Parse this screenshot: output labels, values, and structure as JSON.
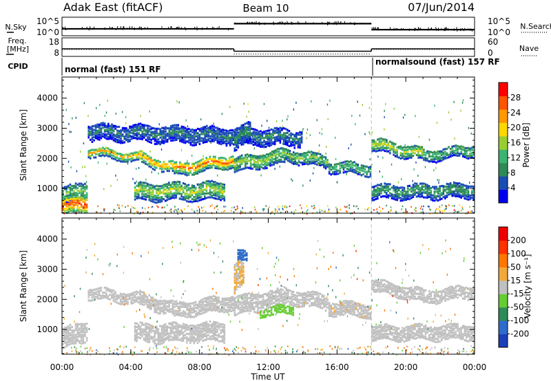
{
  "header": {
    "left_title": "Adak East (fitACF)",
    "center_title": "Beam 10",
    "right_title": "07/Jun/2014"
  },
  "chart_data": [
    {
      "type": "line",
      "panel": "noise",
      "left_label": "N.Sky",
      "left_ticks": [
        "10^5",
        "10^0"
      ],
      "right_label": "N.Search",
      "right_ticks": [
        "10^5",
        "10^0"
      ],
      "series": [
        {
          "name": "N.Sky",
          "style": "solid",
          "segments": [
            {
              "x": [
                0,
                10
              ],
              "y": [
                0.35,
                0.35
              ]
            },
            {
              "x": [
                10,
                18
              ],
              "y": [
                0.68,
                0.68
              ]
            },
            {
              "x": [
                18,
                24
              ],
              "y": [
                0.3,
                0.3
              ]
            }
          ]
        }
      ]
    },
    {
      "type": "line",
      "panel": "frequency",
      "left_label": "Freq.",
      "left_unit": "[MHz]",
      "left_ticks": [
        18,
        8
      ],
      "right_label": "Nave",
      "right_ticks": [
        60,
        0
      ],
      "series": [
        {
          "name": "Freq",
          "style": "solid",
          "segments": [
            {
              "x": [
                0,
                10
              ],
              "y": [
                12,
                12
              ]
            },
            {
              "x": [
                10,
                18
              ],
              "y": [
                10.6,
                10.6
              ]
            },
            {
              "x": [
                18,
                24
              ],
              "y": [
                12,
                12
              ]
            }
          ]
        },
        {
          "name": "Nave",
          "style": "dotted",
          "segments": [
            {
              "x": [
                0,
                10
              ],
              "y": [
                22,
                22
              ]
            },
            {
              "x": [
                10,
                18
              ],
              "y": [
                6,
                6
              ]
            },
            {
              "x": [
                18,
                24
              ],
              "y": [
                22,
                22
              ]
            }
          ]
        }
      ]
    },
    {
      "type": "table",
      "panel": "cpid",
      "label": "CPID",
      "entries": [
        {
          "start": 0,
          "end": 18,
          "text": "normal (fast) 151 RF"
        },
        {
          "start": 18,
          "end": 24,
          "text": "normalsound (fast) 157 RF"
        }
      ]
    },
    {
      "type": "heatmap",
      "panel": "power",
      "ylabel": "Slant Range [km]",
      "ylim": [
        180,
        4700
      ],
      "yticks": [
        1000,
        2000,
        3000,
        4000
      ],
      "xlim": [
        0,
        24
      ],
      "colorbar": {
        "label": "Power [dB]",
        "ticks": [
          4,
          8,
          12,
          16,
          20,
          24,
          28
        ],
        "range": [
          0,
          32
        ],
        "colors": [
          "#0000ee",
          "#1a4db3",
          "#2e8b57",
          "#3cb371",
          "#9acd32",
          "#ffd700",
          "#ff9900",
          "#ff5500",
          "#ff0000"
        ]
      },
      "bands": [
        {
          "t": [
            1.5,
            4.5
          ],
          "r": [
            2250,
            2050
          ],
          "w": 160,
          "v": 22
        },
        {
          "t": [
            4.5,
            6.5
          ],
          "r": [
            2050,
            1700
          ],
          "w": 200,
          "v": 24
        },
        {
          "t": [
            6.5,
            10
          ],
          "r": [
            1650,
            1950
          ],
          "w": 220,
          "v": 26
        },
        {
          "t": [
            10,
            13
          ],
          "r": [
            1800,
            2100
          ],
          "w": 250,
          "v": 17
        },
        {
          "t": [
            13,
            15.5
          ],
          "r": [
            2150,
            1900
          ],
          "w": 220,
          "v": 15
        },
        {
          "t": [
            15.5,
            18
          ],
          "r": [
            1750,
            1650
          ],
          "w": 200,
          "v": 14
        },
        {
          "t": [
            18,
            21
          ],
          "r": [
            2500,
            2150
          ],
          "w": 220,
          "v": 18
        },
        {
          "t": [
            21,
            24
          ],
          "r": [
            2100,
            2300
          ],
          "w": 200,
          "v": 14
        },
        {
          "t": [
            0,
            1.5
          ],
          "r": [
            750,
            1000
          ],
          "w": 300,
          "v": 14
        },
        {
          "t": [
            4.2,
            9.5
          ],
          "r": [
            900,
            950
          ],
          "w": 300,
          "v": 17
        },
        {
          "t": [
            18,
            24
          ],
          "r": [
            900,
            950
          ],
          "w": 250,
          "v": 11
        },
        {
          "t": [
            0,
            1.5
          ],
          "r": [
            400,
            550
          ],
          "w": 350,
          "v": 28
        },
        {
          "t": [
            1.5,
            14
          ],
          "r": [
            2900,
            2700
          ],
          "w": 280,
          "v": 8
        },
        {
          "t": [
            10,
            11
          ],
          "r": [
            2600,
            2900
          ],
          "w": 350,
          "v": 10
        }
      ]
    },
    {
      "type": "heatmap",
      "panel": "velocity",
      "ylabel": "Slant Range [km]",
      "ylim": [
        180,
        4700
      ],
      "yticks": [
        1000,
        2000,
        3000,
        4000
      ],
      "xlim": [
        0,
        24
      ],
      "colorbar": {
        "label": "Velocity [m s⁻¹]",
        "ticks": [
          200,
          100,
          50,
          15,
          -15,
          -50,
          -100,
          -200
        ],
        "range": [
          -250,
          250
        ],
        "colors": [
          "#1b3fb8",
          "#2e6ccc",
          "#2e8b57",
          "#66cc33",
          "#c0c0c0",
          "#f2a93b",
          "#ff7700",
          "#ff3300",
          "#ee0000"
        ]
      },
      "bands": [
        {
          "t": [
            1.5,
            4.5
          ],
          "r": [
            2250,
            2050
          ],
          "w": 200,
          "v": 0
        },
        {
          "t": [
            4.5,
            6.5
          ],
          "r": [
            2050,
            1700
          ],
          "w": 240,
          "v": 0
        },
        {
          "t": [
            6.5,
            10
          ],
          "r": [
            1650,
            1950
          ],
          "w": 260,
          "v": 0
        },
        {
          "t": [
            10,
            13
          ],
          "r": [
            1800,
            2100
          ],
          "w": 320,
          "v": 0
        },
        {
          "t": [
            13,
            15.5
          ],
          "r": [
            2150,
            1900
          ],
          "w": 260,
          "v": 0
        },
        {
          "t": [
            15.5,
            18
          ],
          "r": [
            1750,
            1650
          ],
          "w": 240,
          "v": 20
        },
        {
          "t": [
            18,
            21
          ],
          "r": [
            2500,
            2150
          ],
          "w": 220,
          "v": 0
        },
        {
          "t": [
            21,
            24
          ],
          "r": [
            2100,
            2300
          ],
          "w": 220,
          "v": 0
        },
        {
          "t": [
            0,
            1.5
          ],
          "r": [
            700,
            1000
          ],
          "w": 350,
          "v": 0
        },
        {
          "t": [
            4.2,
            9.5
          ],
          "r": [
            900,
            950
          ],
          "w": 320,
          "v": 0
        },
        {
          "t": [
            18,
            24
          ],
          "r": [
            900,
            950
          ],
          "w": 260,
          "v": 0
        },
        {
          "t": [
            10,
            10.6
          ],
          "r": [
            2700,
            3000
          ],
          "w": 500,
          "v": 30
        },
        {
          "t": [
            10.2,
            10.8
          ],
          "r": [
            3500,
            3400
          ],
          "w": 180,
          "v": -180
        },
        {
          "t": [
            11.5,
            13.5
          ],
          "r": [
            1600,
            1700
          ],
          "w": 150,
          "v": -40
        }
      ]
    }
  ],
  "x_axis": {
    "label": "Time UT",
    "ticks": [
      "00:00",
      "04:00",
      "08:00",
      "12:00",
      "16:00",
      "20:00",
      "00:00"
    ],
    "tick_hours": [
      0,
      4,
      8,
      12,
      16,
      20,
      24
    ]
  }
}
